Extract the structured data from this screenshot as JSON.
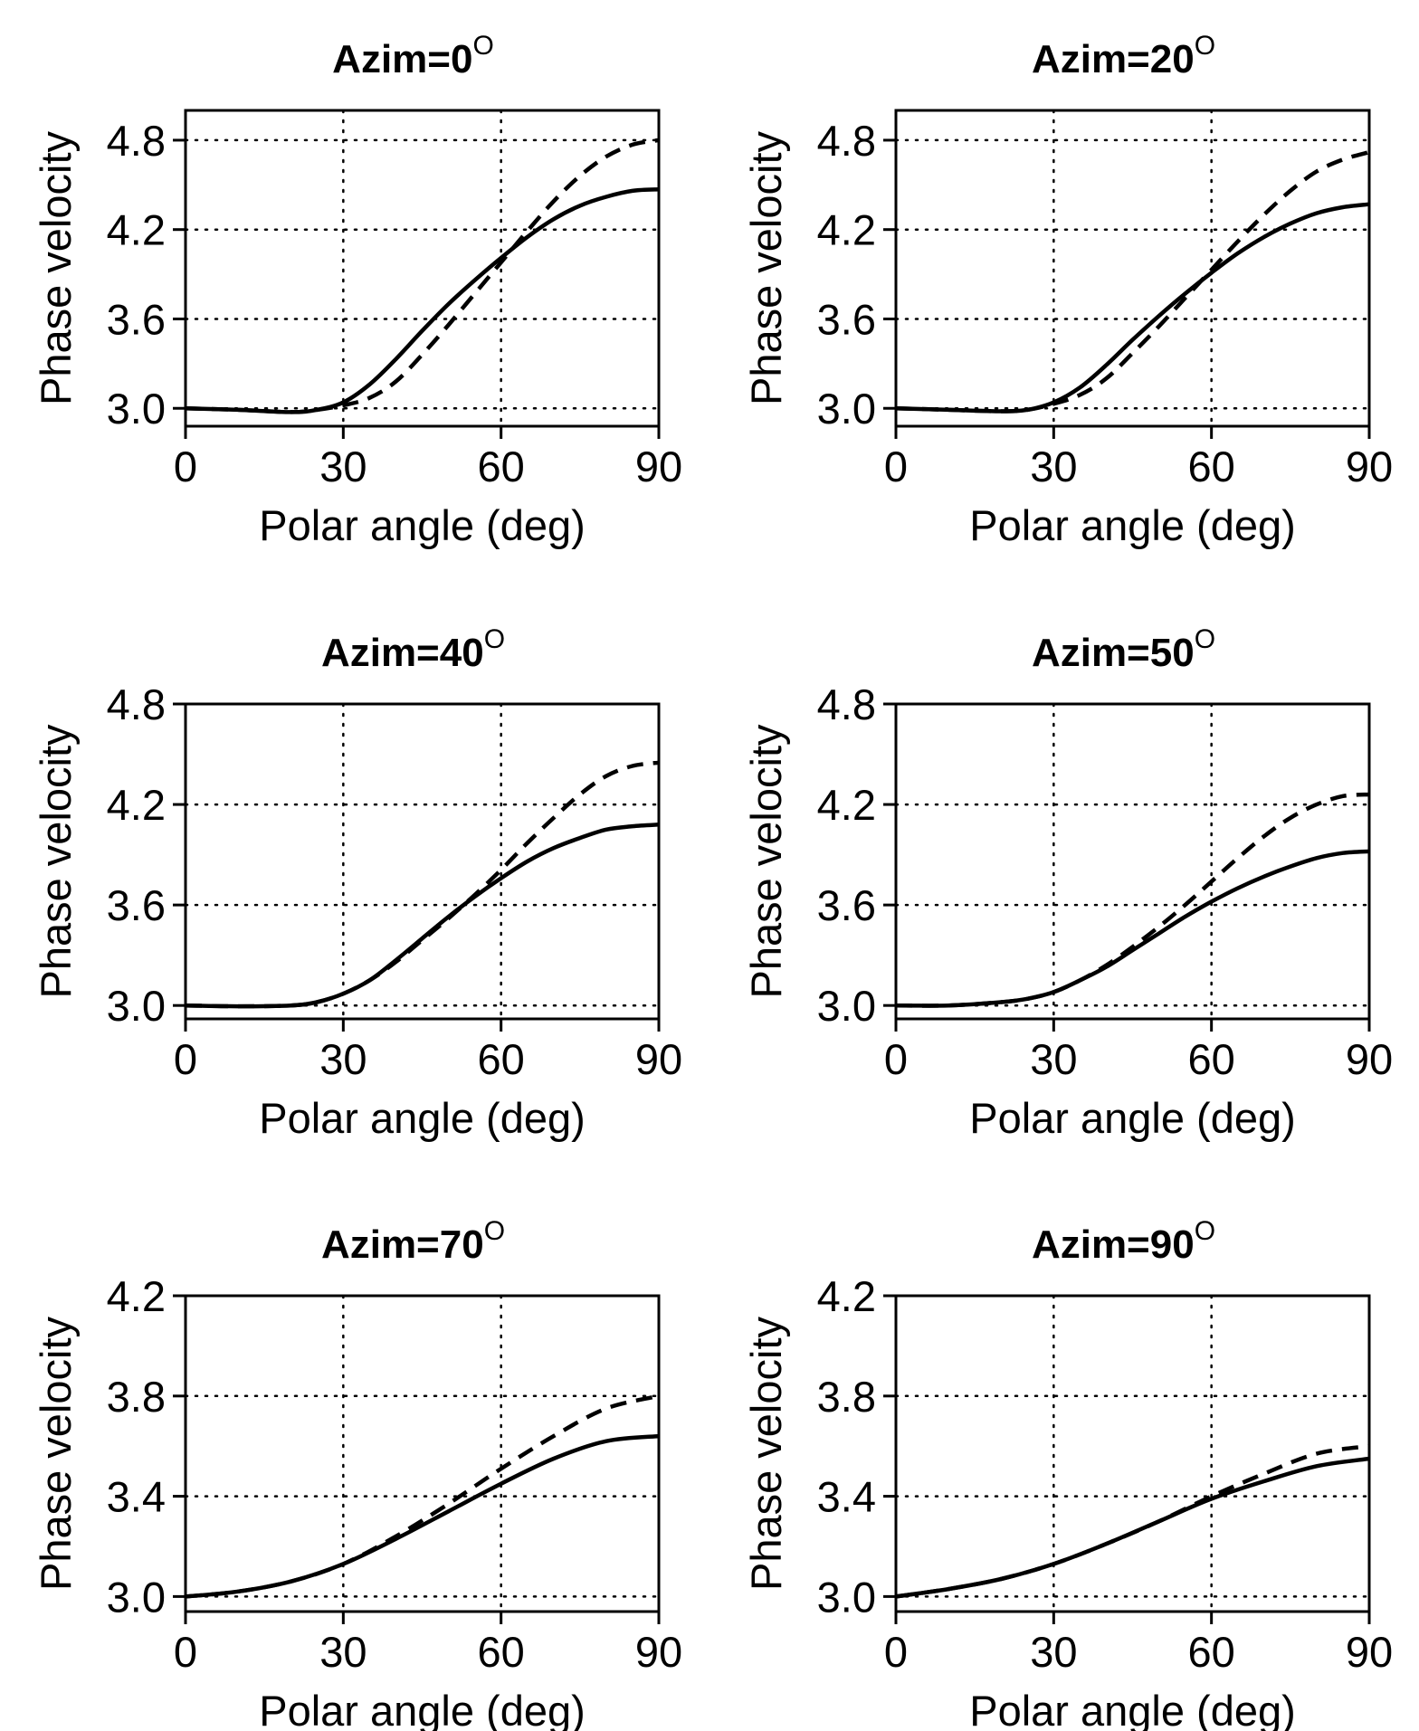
{
  "chart_data": [
    {
      "type": "line",
      "title": "Azim=0",
      "title_superscript": "O",
      "xlabel": "Polar angle (deg)",
      "ylabel": "Phase velocity",
      "xlim": [
        0,
        90
      ],
      "ylim": [
        2.88,
        5.0
      ],
      "xticks": [
        0,
        30,
        60,
        90
      ],
      "yticks": [
        3.0,
        3.6,
        4.2,
        4.8
      ],
      "ytick_labels": [
        "3.0",
        "3.6",
        "4.2",
        "4.8"
      ],
      "grid": true,
      "x": [
        0,
        10,
        20,
        25,
        30,
        35,
        40,
        45,
        50,
        55,
        60,
        65,
        70,
        75,
        80,
        85,
        90
      ],
      "series": [
        {
          "style": "solid",
          "values": [
            3.0,
            2.99,
            2.975,
            2.99,
            3.04,
            3.16,
            3.33,
            3.52,
            3.7,
            3.86,
            4.01,
            4.15,
            4.27,
            4.36,
            4.42,
            4.46,
            4.47
          ]
        },
        {
          "style": "dashed",
          "values": [
            3.0,
            2.99,
            2.975,
            2.99,
            3.02,
            3.07,
            3.18,
            3.36,
            3.56,
            3.77,
            3.98,
            4.19,
            4.39,
            4.56,
            4.69,
            4.77,
            4.8
          ]
        }
      ]
    },
    {
      "type": "line",
      "title": "Azim=20",
      "title_superscript": "O",
      "xlabel": "Polar angle (deg)",
      "ylabel": "Phase velocity",
      "xlim": [
        0,
        90
      ],
      "ylim": [
        2.88,
        5.0
      ],
      "xticks": [
        0,
        30,
        60,
        90
      ],
      "yticks": [
        3.0,
        3.6,
        4.2,
        4.8
      ],
      "ytick_labels": [
        "3.0",
        "3.6",
        "4.2",
        "4.8"
      ],
      "grid": true,
      "x": [
        0,
        10,
        20,
        25,
        30,
        35,
        40,
        45,
        50,
        55,
        60,
        65,
        70,
        75,
        80,
        85,
        90
      ],
      "series": [
        {
          "style": "solid",
          "values": [
            3.0,
            2.99,
            2.98,
            2.99,
            3.04,
            3.14,
            3.29,
            3.46,
            3.62,
            3.77,
            3.91,
            4.04,
            4.15,
            4.24,
            4.31,
            4.35,
            4.37
          ]
        },
        {
          "style": "dashed",
          "values": [
            3.0,
            2.99,
            2.98,
            2.99,
            3.03,
            3.09,
            3.2,
            3.37,
            3.55,
            3.74,
            3.93,
            4.12,
            4.3,
            4.46,
            4.59,
            4.67,
            4.72
          ]
        }
      ]
    },
    {
      "type": "line",
      "title": "Azim=40",
      "title_superscript": "O",
      "xlabel": "Polar angle (deg)",
      "ylabel": "Phase velocity",
      "xlim": [
        0,
        90
      ],
      "ylim": [
        2.92,
        4.8
      ],
      "xticks": [
        0,
        30,
        60,
        90
      ],
      "yticks": [
        3.0,
        3.6,
        4.2,
        4.8
      ],
      "ytick_labels": [
        "3.0",
        "3.6",
        "4.2",
        "4.8"
      ],
      "grid": true,
      "x": [
        0,
        10,
        20,
        25,
        30,
        35,
        40,
        45,
        50,
        55,
        60,
        65,
        70,
        75,
        80,
        85,
        90
      ],
      "series": [
        {
          "style": "solid",
          "values": [
            3.0,
            2.995,
            3.0,
            3.02,
            3.07,
            3.15,
            3.27,
            3.4,
            3.53,
            3.65,
            3.76,
            3.86,
            3.94,
            4.0,
            4.05,
            4.07,
            4.08
          ]
        },
        {
          "style": "dashed",
          "values": [
            3.0,
            2.995,
            3.0,
            3.02,
            3.07,
            3.15,
            3.26,
            3.39,
            3.52,
            3.66,
            3.81,
            3.97,
            4.12,
            4.26,
            4.37,
            4.43,
            4.45
          ]
        }
      ]
    },
    {
      "type": "line",
      "title": "Azim=50",
      "title_superscript": "O",
      "xlabel": "Polar angle (deg)",
      "ylabel": "Phase velocity",
      "xlim": [
        0,
        90
      ],
      "ylim": [
        2.92,
        4.8
      ],
      "xticks": [
        0,
        30,
        60,
        90
      ],
      "yticks": [
        3.0,
        3.6,
        4.2,
        4.8
      ],
      "ytick_labels": [
        "3.0",
        "3.6",
        "4.2",
        "4.8"
      ],
      "grid": true,
      "x": [
        0,
        10,
        20,
        25,
        30,
        35,
        40,
        45,
        50,
        55,
        60,
        65,
        70,
        75,
        80,
        85,
        90
      ],
      "series": [
        {
          "style": "solid",
          "values": [
            3.0,
            3.0,
            3.02,
            3.04,
            3.08,
            3.15,
            3.23,
            3.33,
            3.43,
            3.53,
            3.62,
            3.7,
            3.77,
            3.83,
            3.88,
            3.91,
            3.92
          ]
        },
        {
          "style": "dashed",
          "values": [
            3.0,
            3.0,
            3.02,
            3.04,
            3.08,
            3.15,
            3.24,
            3.35,
            3.47,
            3.6,
            3.74,
            3.88,
            4.01,
            4.12,
            4.2,
            4.25,
            4.26
          ]
        }
      ]
    },
    {
      "type": "line",
      "title": "Azim=70",
      "title_superscript": "O",
      "xlabel": "Polar angle (deg)",
      "ylabel": "Phase velocity",
      "xlim": [
        0,
        90
      ],
      "ylim": [
        2.94,
        4.2
      ],
      "xticks": [
        0,
        30,
        60,
        90
      ],
      "yticks": [
        3.0,
        3.4,
        3.8,
        4.2
      ],
      "ytick_labels": [
        "3.0",
        "3.4",
        "3.8",
        "4.2"
      ],
      "grid": true,
      "x": [
        0,
        10,
        20,
        30,
        40,
        50,
        60,
        70,
        80,
        90
      ],
      "series": [
        {
          "style": "solid",
          "values": [
            3.0,
            3.02,
            3.06,
            3.13,
            3.23,
            3.34,
            3.45,
            3.55,
            3.62,
            3.64
          ]
        },
        {
          "style": "dashed",
          "values": [
            3.0,
            3.02,
            3.06,
            3.13,
            3.24,
            3.37,
            3.51,
            3.64,
            3.75,
            3.8
          ]
        }
      ]
    },
    {
      "type": "line",
      "title": "Azim=90",
      "title_superscript": "O",
      "xlabel": "Polar angle (deg)",
      "ylabel": "Phase velocity",
      "xlim": [
        0,
        90
      ],
      "ylim": [
        2.94,
        4.2
      ],
      "xticks": [
        0,
        30,
        60,
        90
      ],
      "yticks": [
        3.0,
        3.4,
        3.8,
        4.2
      ],
      "ytick_labels": [
        "3.0",
        "3.4",
        "3.8",
        "4.2"
      ],
      "grid": true,
      "x": [
        0,
        10,
        20,
        30,
        40,
        50,
        60,
        70,
        80,
        90
      ],
      "series": [
        {
          "style": "solid",
          "values": [
            3.0,
            3.03,
            3.07,
            3.13,
            3.21,
            3.3,
            3.39,
            3.46,
            3.52,
            3.55
          ]
        },
        {
          "style": "dashed",
          "values": [
            3.0,
            3.03,
            3.07,
            3.13,
            3.21,
            3.3,
            3.4,
            3.49,
            3.57,
            3.6
          ]
        }
      ]
    }
  ]
}
